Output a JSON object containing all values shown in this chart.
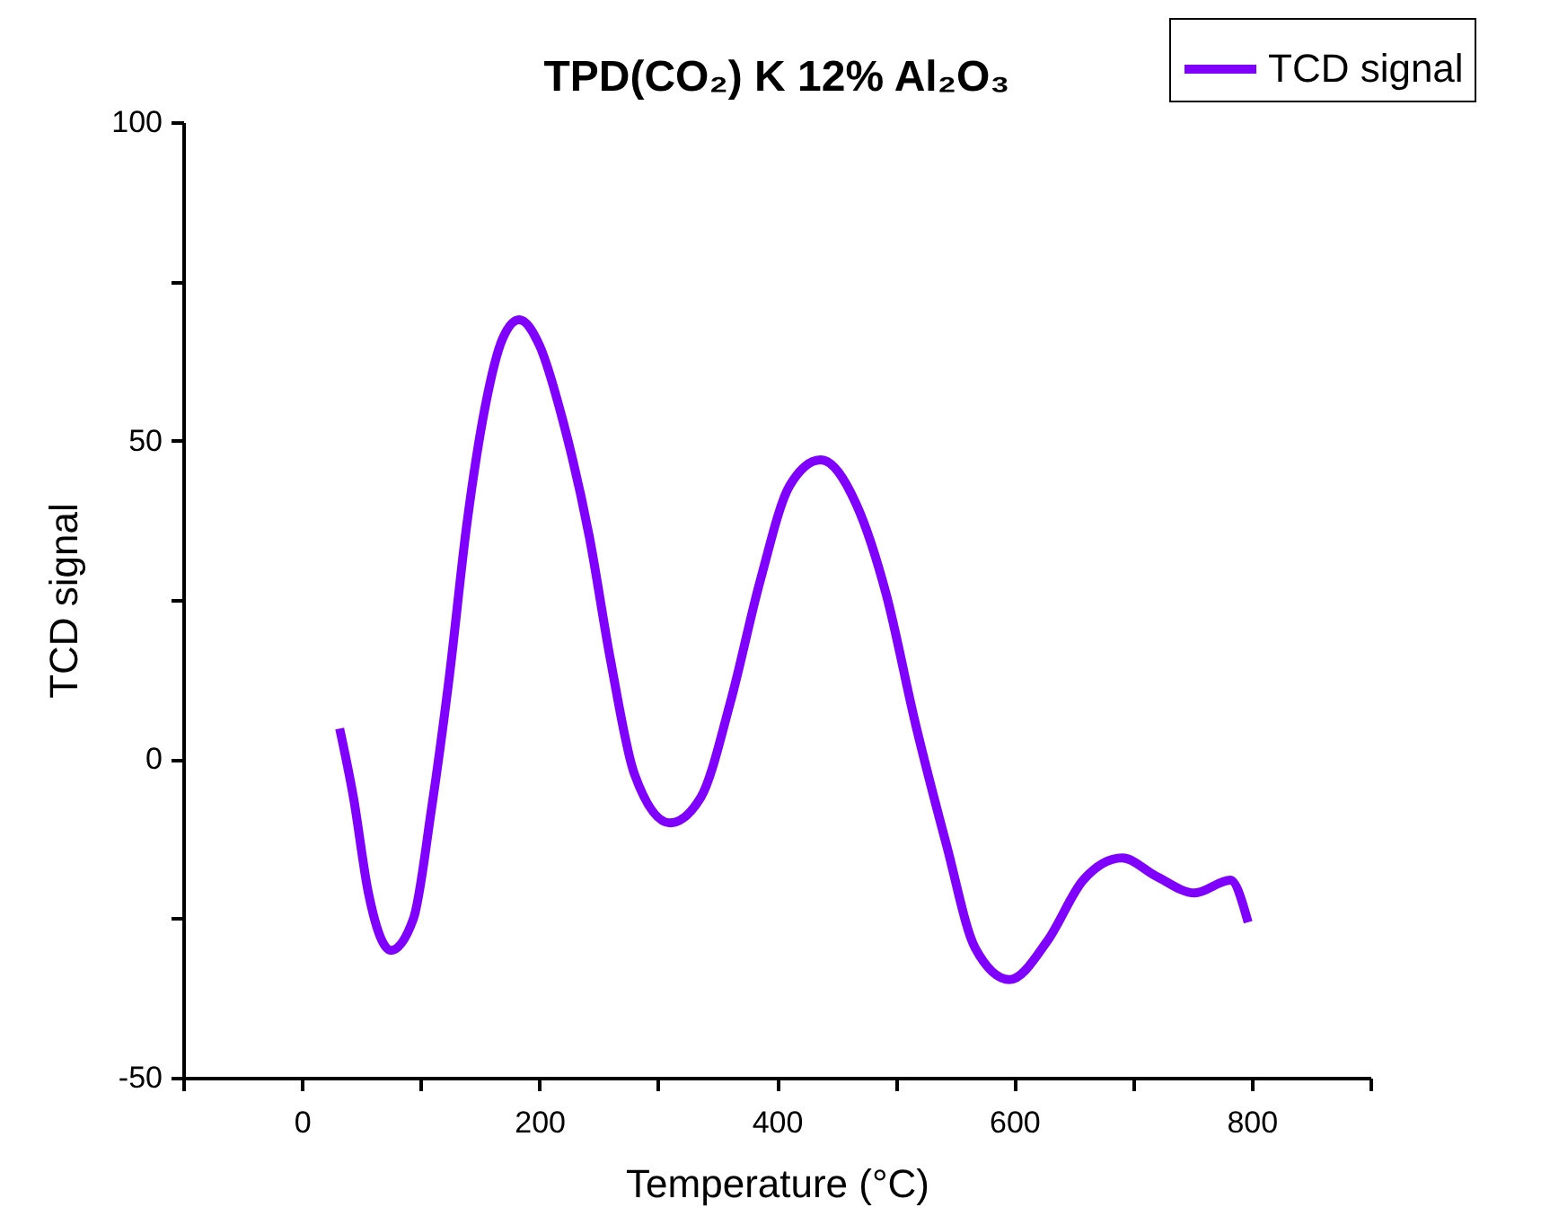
{
  "chart_data": {
    "type": "line",
    "title": "TPD(CO₂) K 12% Al₂O₃",
    "xlabel": "Temperature (°C)",
    "ylabel": "TCD signal",
    "x": [
      31.8,
      43.4,
      56,
      75,
      94,
      109,
      124,
      139,
      154,
      169,
      183,
      200,
      220,
      242,
      260,
      280,
      310,
      336,
      361,
      386,
      411,
      437,
      467,
      492,
      517,
      543,
      567,
      596,
      628,
      658,
      691,
      719,
      752,
      782,
      797
    ],
    "series": [
      {
        "name": "TCD signal",
        "color": "#8000ff",
        "values": [
          4.8,
          -6,
          -21,
          -30,
          -25,
          -8,
          12.7,
          37,
          55,
          66,
          69,
          65,
          53,
          35,
          15.5,
          -2.3,
          -10,
          -6,
          9,
          28,
          43,
          47,
          40,
          26,
          5.4,
          -13.5,
          -29.6,
          -34.6,
          -28.5,
          -19,
          -15.5,
          -18.3,
          -21,
          -19,
          -25.6
        ]
      }
    ],
    "xlim": [
      -100,
      900
    ],
    "xticks": [
      {
        "value": -100,
        "label": null
      },
      0,
      {
        "value": 100,
        "label": null
      },
      200,
      {
        "value": 300,
        "label": null
      },
      400,
      {
        "value": 500,
        "label": null
      },
      600,
      {
        "value": 700,
        "label": null
      },
      800,
      {
        "value": 900,
        "label": null
      }
    ],
    "ylim": [
      -50,
      100
    ],
    "yticks": [
      -50,
      {
        "value": -25,
        "label": null
      },
      0,
      {
        "value": 25,
        "label": null
      },
      50,
      {
        "value": 75,
        "label": null
      },
      100
    ],
    "legend": "top right",
    "grid": false
  }
}
